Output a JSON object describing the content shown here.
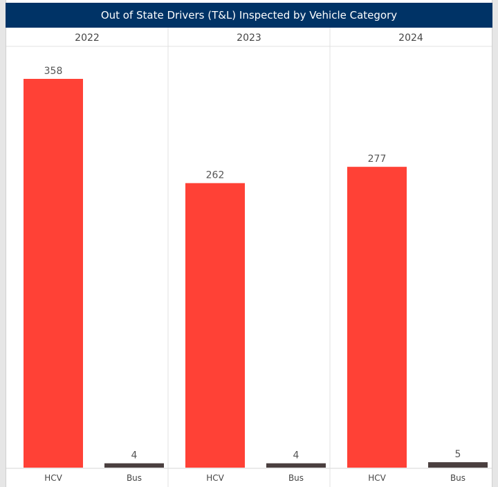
{
  "title": "Out of State Drivers (T&L) Inspected by Vehicle Category",
  "colors": {
    "HCV": "#ff4136",
    "Bus": "#4a3f3f",
    "title_bg": "#003366"
  },
  "chart_data": {
    "type": "bar",
    "title": "Out of State Drivers (T&L) Inspected by Vehicle Category",
    "panels": [
      "2022",
      "2023",
      "2024"
    ],
    "categories": [
      "HCV",
      "Bus"
    ],
    "values": [
      [
        358,
        4
      ],
      [
        262,
        4
      ],
      [
        277,
        5
      ]
    ],
    "ylim": [
      0,
      400
    ],
    "grid": false,
    "legend": "none"
  }
}
